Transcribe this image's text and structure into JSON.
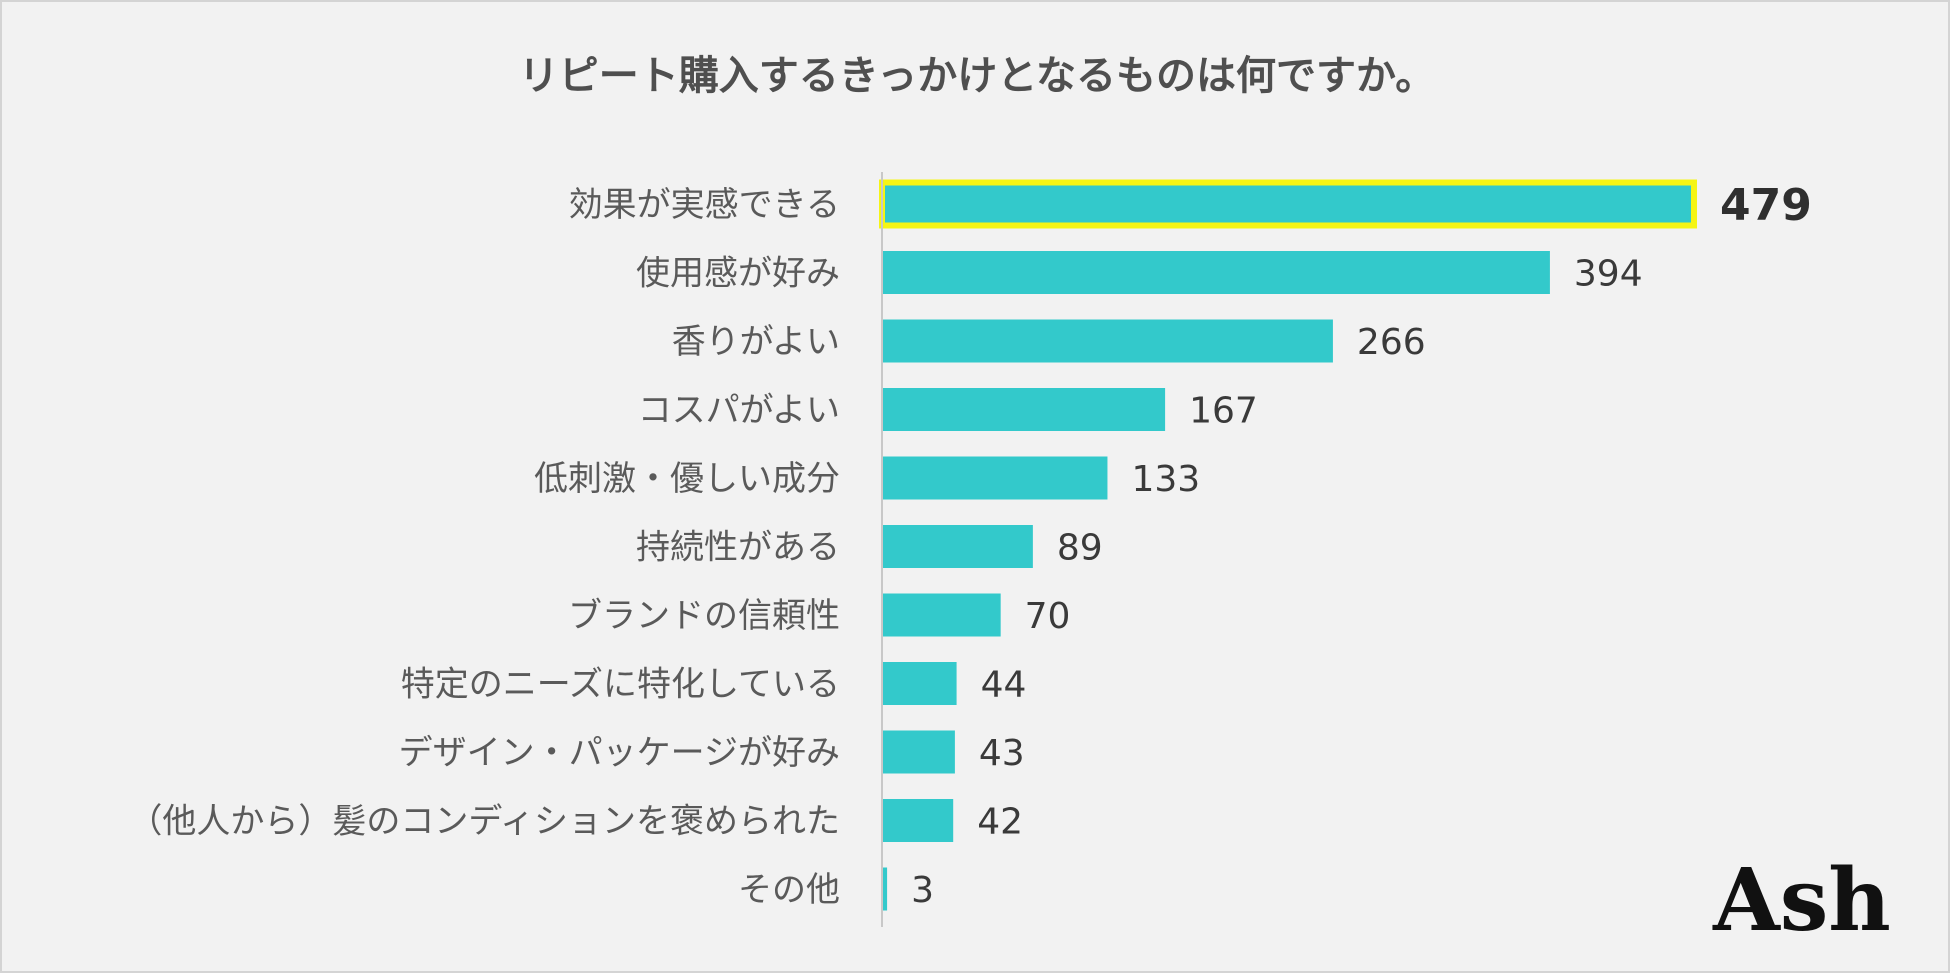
{
  "colors": {
    "bar": "#33c9cb",
    "highlight_outline": "#f5f515",
    "axis": "#c8c8c8"
  },
  "chart_data": {
    "type": "bar",
    "orientation": "horizontal",
    "title": "リピート購入するきっかけとなるものは何ですか。",
    "categories": [
      "効果が実感できる",
      "使用感が好み",
      "香りがよい",
      "コスパがよい",
      "低刺激・優しい成分",
      "持続性がある",
      "ブランドの信頼性",
      "特定のニーズに特化している",
      "デザイン・パッケージが好み",
      "（他人から）髪のコンディションを褒められた",
      "その他"
    ],
    "values": [
      479,
      394,
      266,
      167,
      133,
      89,
      70,
      44,
      43,
      42,
      3
    ],
    "highlighted_category": "効果が実感できる",
    "xlim": [
      0,
      479
    ],
    "grid": false
  },
  "logo": {
    "text": "Ash"
  }
}
